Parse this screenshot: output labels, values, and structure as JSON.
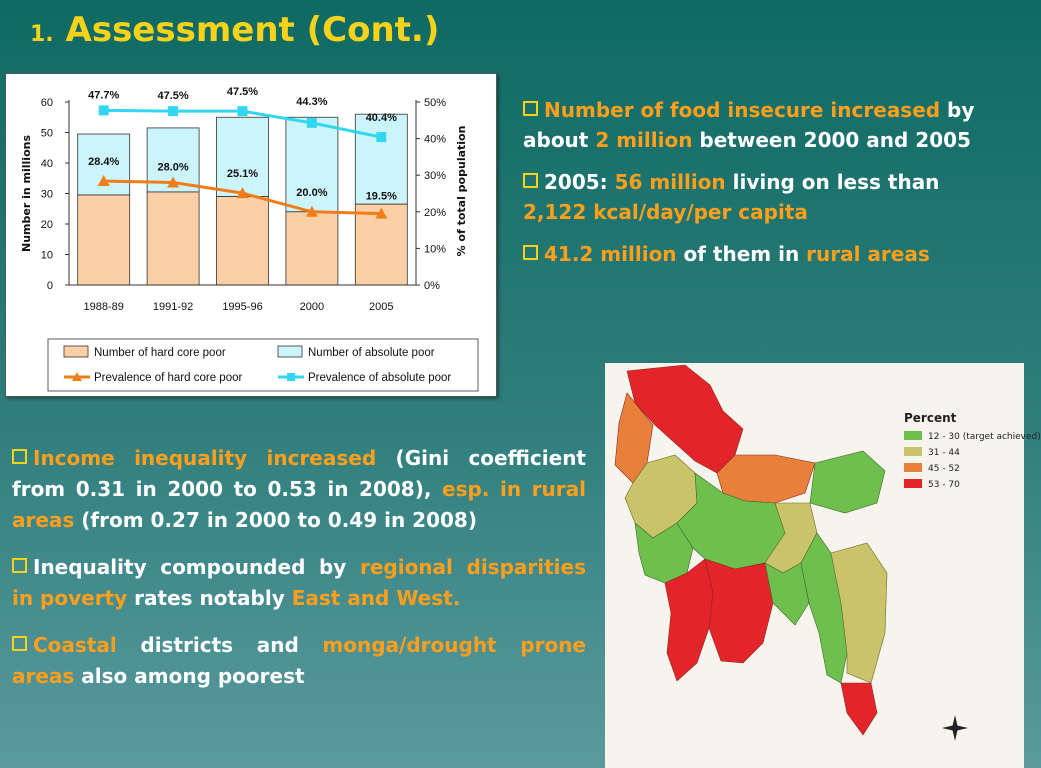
{
  "title": {
    "number": "1.",
    "text": "Assessment (Cont.)"
  },
  "chart_data": {
    "type": "bar",
    "categories": [
      "1988-89",
      "1991-92",
      "1995-96",
      "2000",
      "2005"
    ],
    "series": [
      {
        "name": "Number of hard core poor",
        "kind": "bar",
        "axis": "left",
        "color": "#fbd0a6",
        "values": [
          29.5,
          30.5,
          29,
          24,
          26.5
        ]
      },
      {
        "name": "Number of absolute poor",
        "kind": "bar",
        "axis": "left",
        "color": "#ccf5fb",
        "values": [
          49.5,
          51.5,
          55,
          55,
          56
        ]
      },
      {
        "name": "Prevalence of hard core poor",
        "kind": "line",
        "axis": "right",
        "color": "#f07d18",
        "values": [
          28.4,
          28.0,
          25.1,
          20.0,
          19.5
        ],
        "labels": [
          "28.4%",
          "28.0%",
          "25.1%",
          "20.0%",
          "19.5%"
        ]
      },
      {
        "name": "Prevalence of absolute poor",
        "kind": "line",
        "axis": "right",
        "color": "#33d6f0",
        "values": [
          47.7,
          47.5,
          47.5,
          44.3,
          40.4
        ],
        "labels": [
          "47.7%",
          "47.5%",
          "47.5%",
          "44.3%",
          "40.4%"
        ]
      }
    ],
    "ylabel": "Number in millions",
    "y2label": "% of total population",
    "ylim": [
      0,
      60
    ],
    "y2lim": [
      0,
      50
    ],
    "yticks": [
      "0",
      "10",
      "20",
      "30",
      "40",
      "50",
      "60"
    ],
    "y2ticks": [
      "0%",
      "10%",
      "20%",
      "30%",
      "40%",
      "50%"
    ],
    "legend_position": "bottom"
  },
  "bullets_right": [
    [
      {
        "t": "Number of food insecure increased",
        "o": true
      },
      {
        "t": " by about ",
        "o": false
      },
      {
        "t": "2 million",
        "o": true
      },
      {
        "t": " between 2000 and 2005",
        "o": false
      }
    ],
    [
      {
        "t": "2005: ",
        "o": false
      },
      {
        "t": "56 million",
        "o": true
      },
      {
        "t": " living on less than ",
        "o": false
      },
      {
        "t": "2,122 kcal/day/per capita",
        "o": true
      }
    ],
    [
      {
        "t": "41.2 million",
        "o": true
      },
      {
        "t": " of them in ",
        "o": false
      },
      {
        "t": "rural areas",
        "o": true
      }
    ]
  ],
  "bullets_left": [
    [
      {
        "t": "Income inequality increased",
        "o": true
      },
      {
        "t": " (Gini coefficient from 0.31 in 2000 to 0.53 in 2008), ",
        "o": false
      },
      {
        "t": "esp. in rural areas",
        "o": true
      },
      {
        "t": " (from 0.27 in 2000 to 0.49 in 2008)",
        "o": false
      }
    ],
    [
      {
        "t": "Inequality compounded by ",
        "o": false
      },
      {
        "t": "regional disparities in poverty",
        "o": true
      },
      {
        "t": " rates notably ",
        "o": false
      },
      {
        "t": "East and West.",
        "o": true
      }
    ],
    [
      {
        "t": "Coastal",
        "o": true
      },
      {
        "t": " districts and ",
        "o": false
      },
      {
        "t": "monga/drought prone areas",
        "o": true
      },
      {
        "t": " also among poorest",
        "o": false
      }
    ]
  ],
  "map": {
    "legend_title": "Percent",
    "legend": [
      {
        "label": "12 - 30 (target achieved)",
        "color": "#6fbf4e"
      },
      {
        "label": "31 - 44",
        "color": "#c9c46a"
      },
      {
        "label": "45 - 52",
        "color": "#e8803c"
      },
      {
        "label": "53 - 70",
        "color": "#e3242b"
      }
    ]
  }
}
